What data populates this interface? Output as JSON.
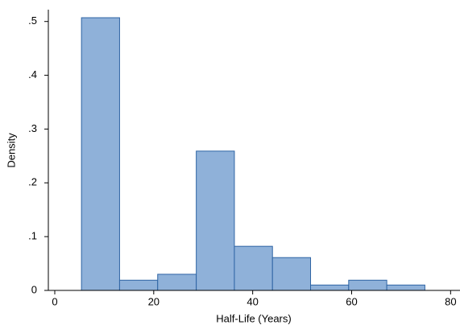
{
  "chart_data": {
    "type": "histogram",
    "xlabel": "Half-Life (Years)",
    "ylabel": "Density",
    "bins": [
      5.4,
      13.1,
      20.8,
      28.6,
      36.3,
      44,
      51.7,
      59.4,
      67.1,
      74.8
    ],
    "values": [
      0.507,
      0.019,
      0.03,
      0.259,
      0.082,
      0.061,
      0.01,
      0.019,
      0.01
    ],
    "color": "#8fb1d9",
    "edgecolor": "#2e64a4",
    "xlim": [
      -1.3,
      81.9
    ],
    "xticks": [
      0,
      20,
      40,
      60,
      80
    ],
    "ylim": [
      0,
      0.522
    ],
    "yticks": [
      0,
      {
        "value": 0.1,
        "label": ".1"
      },
      {
        "value": 0.2,
        "label": ".2"
      },
      {
        "value": 0.3,
        "label": ".3"
      },
      {
        "value": 0.4,
        "label": ".4"
      },
      {
        "value": 0.5,
        "label": ".5"
      }
    ],
    "grid": false
  }
}
